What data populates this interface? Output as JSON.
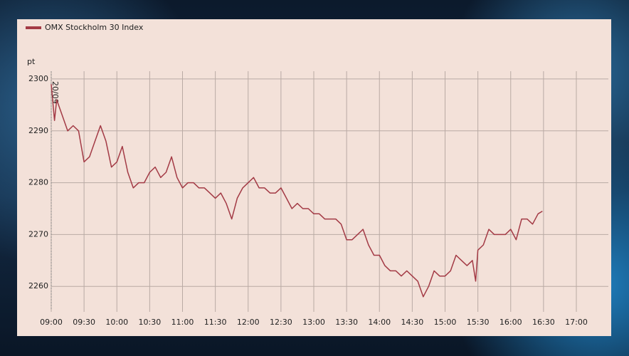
{
  "chart_data": {
    "type": "line",
    "y_label": "pt",
    "date_label": "20/09",
    "x": [
      "09:00",
      "09:03",
      "09:05",
      "09:10",
      "09:15",
      "09:20",
      "09:25",
      "09:30",
      "09:35",
      "09:40",
      "09:45",
      "09:50",
      "09:55",
      "10:00",
      "10:05",
      "10:10",
      "10:15",
      "10:20",
      "10:25",
      "10:30",
      "10:35",
      "10:40",
      "10:45",
      "10:50",
      "10:55",
      "11:00",
      "11:05",
      "11:10",
      "11:15",
      "11:20",
      "11:25",
      "11:30",
      "11:35",
      "11:40",
      "11:45",
      "11:50",
      "11:55",
      "12:00",
      "12:05",
      "12:10",
      "12:15",
      "12:20",
      "12:25",
      "12:30",
      "12:35",
      "12:40",
      "12:45",
      "12:50",
      "12:55",
      "13:00",
      "13:05",
      "13:10",
      "13:15",
      "13:20",
      "13:25",
      "13:30",
      "13:35",
      "13:40",
      "13:45",
      "13:50",
      "13:55",
      "14:00",
      "14:05",
      "14:10",
      "14:15",
      "14:20",
      "14:25",
      "14:30",
      "14:35",
      "14:40",
      "14:45",
      "14:50",
      "14:55",
      "15:00",
      "15:05",
      "15:10",
      "15:15",
      "15:20",
      "15:25",
      "15:28",
      "15:30",
      "15:35",
      "15:40",
      "15:45",
      "15:50",
      "15:55",
      "16:00",
      "16:05",
      "16:10",
      "16:15",
      "16:20",
      "16:25",
      "16:29"
    ],
    "series": [
      {
        "name": "OMX Stockholm 30 Index",
        "color": "#a33a45",
        "values": [
          2299,
          2292,
          2296,
          2293,
          2290,
          2291,
          2290,
          2284,
          2285,
          2288,
          2291,
          2288,
          2283,
          2284,
          2287,
          2282,
          2279,
          2280,
          2280,
          2282,
          2283,
          2281,
          2282,
          2285,
          2281,
          2279,
          2280,
          2280,
          2279,
          2279,
          2278,
          2277,
          2278,
          2276,
          2273,
          2277,
          2279,
          2280,
          2281,
          2279,
          2279,
          2278,
          2278,
          2279,
          2277,
          2275,
          2276,
          2275,
          2275,
          2274,
          2274,
          2273,
          2273,
          2273,
          2272,
          2269,
          2269,
          2270,
          2271,
          2268,
          2266,
          2266,
          2264,
          2263,
          2263,
          2262,
          2263,
          2262,
          2261,
          2258,
          2260,
          2263,
          2262,
          2262,
          2263,
          2266,
          2265,
          2264,
          2265,
          2261,
          2267,
          2268,
          2271,
          2270,
          2270,
          2270,
          2271,
          2269,
          2273,
          2273,
          2272,
          2274,
          2274.5
        ]
      }
    ],
    "xlim": [
      "09:00",
      "17:00"
    ],
    "xticks": [
      "09:00",
      "09:30",
      "10:00",
      "10:30",
      "11:00",
      "11:30",
      "12:00",
      "12:30",
      "13:00",
      "13:30",
      "14:00",
      "14:30",
      "15:00",
      "15:30",
      "16:00",
      "16:30",
      "17:00"
    ],
    "ylim": [
      2255.5,
      2301.5
    ],
    "yticks": [
      2260,
      2270,
      2280,
      2290,
      2300
    ],
    "grid": true,
    "legend": "top-left"
  }
}
